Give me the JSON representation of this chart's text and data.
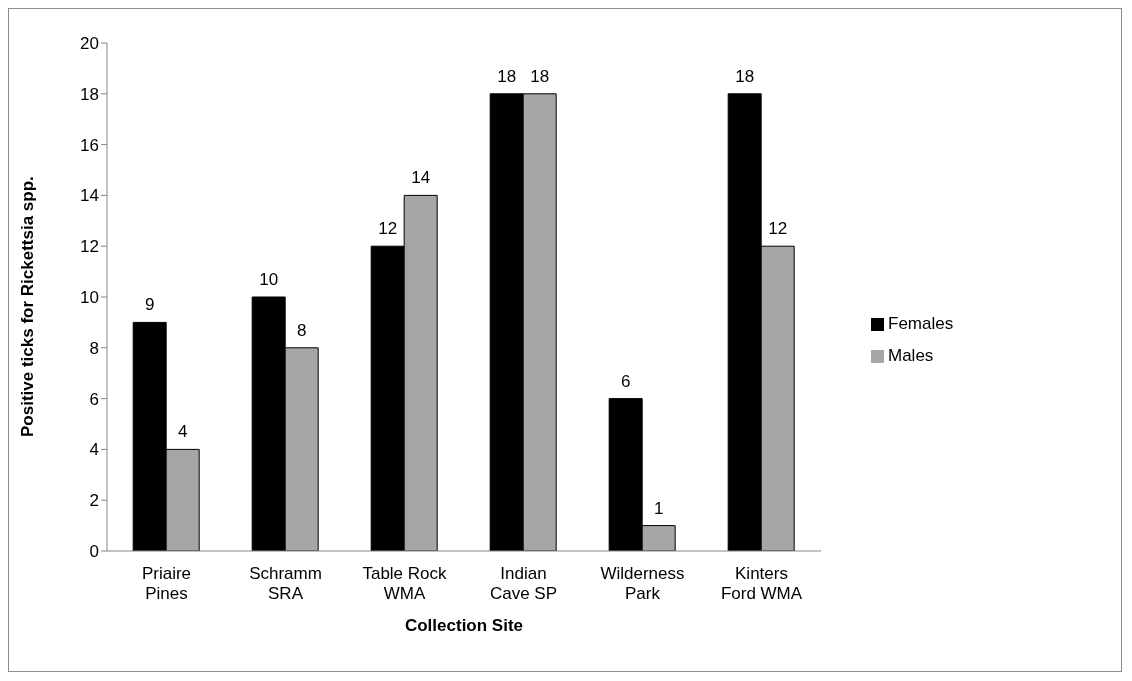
{
  "chart_data": {
    "type": "bar",
    "xlabel": "Collection Site",
    "ylabel": "Positive ticks for Rickettsia spp.",
    "categories": [
      "Priaire Pines",
      "Schramm SRA",
      "Table Rock WMA",
      "Indian Cave SP",
      "Wilderness Park",
      "Kinters Ford WMA"
    ],
    "series": [
      {
        "name": "Females",
        "color": "#000000",
        "values": [
          9,
          10,
          12,
          18,
          6,
          18
        ]
      },
      {
        "name": "Males",
        "color": "#a6a6a6",
        "values": [
          4,
          8,
          14,
          18,
          1,
          12
        ]
      }
    ],
    "ylim": [
      0,
      20
    ],
    "yticks": [
      0,
      2,
      4,
      6,
      8,
      10,
      12,
      14,
      16,
      18,
      20
    ],
    "grid": false,
    "legend": "right",
    "data_labels": true
  }
}
